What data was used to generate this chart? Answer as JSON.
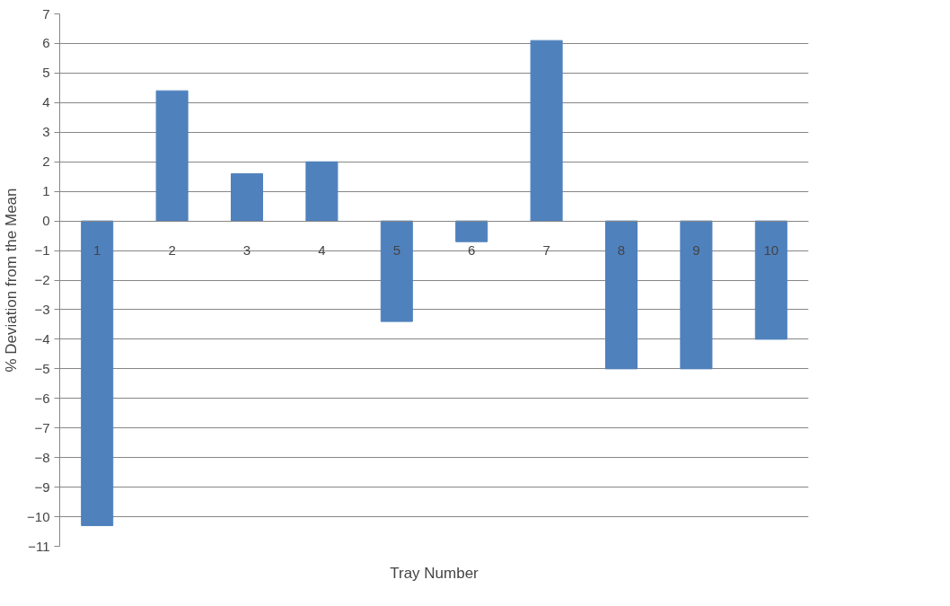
{
  "chart_data": {
    "type": "bar",
    "xlabel": "Tray Number",
    "ylabel": "% Deviation from the Mean",
    "categories": [
      "1",
      "2",
      "3",
      "4",
      "5",
      "6",
      "7",
      "8",
      "9",
      "10"
    ],
    "values": [
      -10.3,
      4.4,
      1.6,
      2.0,
      -3.4,
      -0.7,
      6.1,
      -5.0,
      -5.0,
      -4.0
    ],
    "color": "#4f81bd",
    "ylim": [
      -11,
      7
    ],
    "yticks": [
      -11,
      -10,
      -9,
      -8,
      -7,
      -6,
      -5,
      -4,
      -3,
      -2,
      -1,
      0,
      1,
      2,
      3,
      4,
      5,
      6,
      7
    ],
    "grid": "y"
  }
}
